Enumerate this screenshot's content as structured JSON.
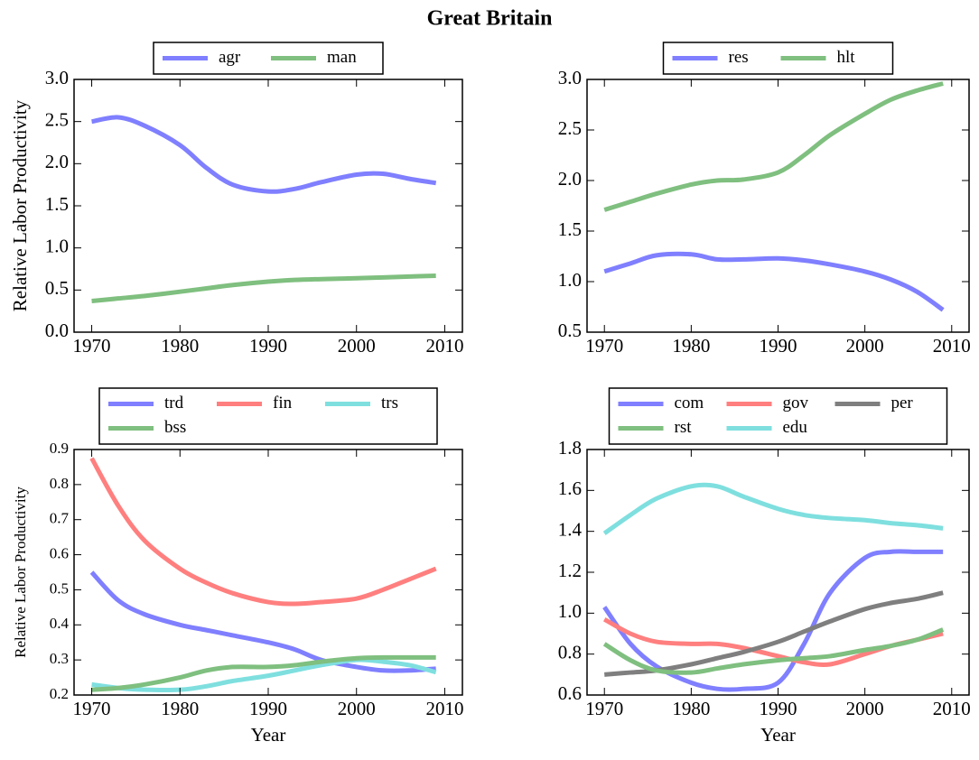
{
  "title": "Great Britain",
  "chart_data": [
    {
      "type": "line",
      "ylabel": "Relative Labor Productivity",
      "x": [
        1970,
        1973,
        1976,
        1980,
        1983,
        1986,
        1990,
        1993,
        1996,
        2000,
        2003,
        2006,
        2009
      ],
      "xlim": [
        1968,
        2012
      ],
      "xticks": [
        1970,
        1980,
        1990,
        2000,
        2010
      ],
      "ylim": [
        0,
        3
      ],
      "yticks": [
        {
          "value": 0,
          "label": "0.0"
        },
        0.5,
        {
          "value": 1,
          "label": "1.0"
        },
        1.5,
        {
          "value": 2,
          "label": "2.0"
        },
        2.5,
        {
          "value": 3,
          "label": "3.0"
        }
      ],
      "legend": "above",
      "legend_columns": 2,
      "series": [
        {
          "name": "agr",
          "color": "#7f7fff",
          "values": [
            2.5,
            2.55,
            2.45,
            2.22,
            1.95,
            1.75,
            1.67,
            1.7,
            1.78,
            1.87,
            1.88,
            1.82,
            1.77
          ]
        },
        {
          "name": "man",
          "color": "#7fbf7f",
          "values": [
            0.37,
            0.4,
            0.43,
            0.48,
            0.52,
            0.56,
            0.6,
            0.62,
            0.63,
            0.64,
            0.65,
            0.66,
            0.67
          ]
        }
      ]
    },
    {
      "type": "line",
      "x": [
        1970,
        1973,
        1976,
        1980,
        1983,
        1986,
        1990,
        1993,
        1996,
        2000,
        2003,
        2006,
        2009
      ],
      "xlim": [
        1968,
        2012
      ],
      "xticks": [
        1970,
        1980,
        1990,
        2000,
        2010
      ],
      "ylim": [
        0.5,
        3
      ],
      "yticks": [
        0.5,
        {
          "value": 1,
          "label": "1.0"
        },
        1.5,
        {
          "value": 2,
          "label": "2.0"
        },
        2.5,
        {
          "value": 3,
          "label": "3.0"
        }
      ],
      "legend": "above",
      "legend_columns": 2,
      "series": [
        {
          "name": "res",
          "color": "#7f7fff",
          "values": [
            1.1,
            1.18,
            1.26,
            1.27,
            1.22,
            1.22,
            1.23,
            1.21,
            1.17,
            1.1,
            1.02,
            0.9,
            0.72
          ]
        },
        {
          "name": "hlt",
          "color": "#7fbf7f",
          "values": [
            1.71,
            1.79,
            1.87,
            1.96,
            2.0,
            2.01,
            2.08,
            2.25,
            2.45,
            2.66,
            2.8,
            2.89,
            2.96
          ]
        }
      ]
    },
    {
      "type": "line",
      "ylabel": "Relative Labor Productivity",
      "xlabel": "Year",
      "x": [
        1970,
        1973,
        1976,
        1980,
        1983,
        1986,
        1990,
        1993,
        1996,
        2000,
        2003,
        2006,
        2009
      ],
      "xlim": [
        1968,
        2012
      ],
      "xticks": [
        1970,
        1980,
        1990,
        2000,
        2010
      ],
      "ylim": [
        0.2,
        0.9
      ],
      "yticks": [
        0.2,
        0.3,
        0.4,
        0.5,
        0.6,
        0.7,
        0.8,
        0.9
      ],
      "legend": "above",
      "legend_columns": 3,
      "series": [
        {
          "name": "trd",
          "color": "#7f7fff",
          "values": [
            0.55,
            0.47,
            0.43,
            0.4,
            0.385,
            0.37,
            0.35,
            0.33,
            0.3,
            0.28,
            0.27,
            0.27,
            0.275
          ]
        },
        {
          "name": "fin",
          "color": "#ff7f7f",
          "values": [
            0.875,
            0.74,
            0.64,
            0.56,
            0.52,
            0.49,
            0.465,
            0.46,
            0.465,
            0.475,
            0.5,
            0.53,
            0.56
          ]
        },
        {
          "name": "trs",
          "color": "#7fdfdf",
          "values": [
            0.23,
            0.22,
            0.215,
            0.215,
            0.225,
            0.24,
            0.255,
            0.27,
            0.285,
            0.3,
            0.295,
            0.285,
            0.265
          ]
        },
        {
          "name": "bss",
          "color": "#7fbf7f",
          "values": [
            0.215,
            0.22,
            0.23,
            0.25,
            0.27,
            0.28,
            0.28,
            0.285,
            0.295,
            0.305,
            0.307,
            0.307,
            0.307
          ]
        }
      ]
    },
    {
      "type": "line",
      "xlabel": "Year",
      "x": [
        1970,
        1973,
        1976,
        1980,
        1983,
        1986,
        1990,
        1993,
        1996,
        2000,
        2003,
        2006,
        2009
      ],
      "xlim": [
        1968,
        2012
      ],
      "xticks": [
        1970,
        1980,
        1990,
        2000,
        2010
      ],
      "ylim": [
        0.6,
        1.8
      ],
      "yticks": [
        0.6,
        0.8,
        {
          "value": 1,
          "label": "1.0"
        },
        1.2,
        1.4,
        1.6,
        1.8
      ],
      "legend": "above",
      "legend_columns": 3,
      "series": [
        {
          "name": "com",
          "color": "#7f7fff",
          "values": [
            1.03,
            0.85,
            0.74,
            0.66,
            0.63,
            0.63,
            0.66,
            0.85,
            1.1,
            1.27,
            1.3,
            1.3,
            1.3
          ]
        },
        {
          "name": "gov",
          "color": "#ff7f7f",
          "values": [
            0.97,
            0.9,
            0.86,
            0.85,
            0.85,
            0.83,
            0.79,
            0.76,
            0.75,
            0.8,
            0.84,
            0.87,
            0.9
          ]
        },
        {
          "name": "per",
          "color": "#7f7f7f",
          "values": [
            0.7,
            0.71,
            0.72,
            0.75,
            0.78,
            0.81,
            0.86,
            0.91,
            0.96,
            1.02,
            1.05,
            1.07,
            1.1
          ]
        },
        {
          "name": "rst",
          "color": "#7fbf7f",
          "values": [
            0.85,
            0.77,
            0.72,
            0.71,
            0.73,
            0.75,
            0.77,
            0.78,
            0.79,
            0.82,
            0.84,
            0.87,
            0.92
          ]
        },
        {
          "name": "edu",
          "color": "#7fdfdf",
          "values": [
            1.39,
            1.48,
            1.56,
            1.62,
            1.62,
            1.57,
            1.51,
            1.48,
            1.465,
            1.455,
            1.44,
            1.43,
            1.415
          ]
        }
      ]
    }
  ]
}
